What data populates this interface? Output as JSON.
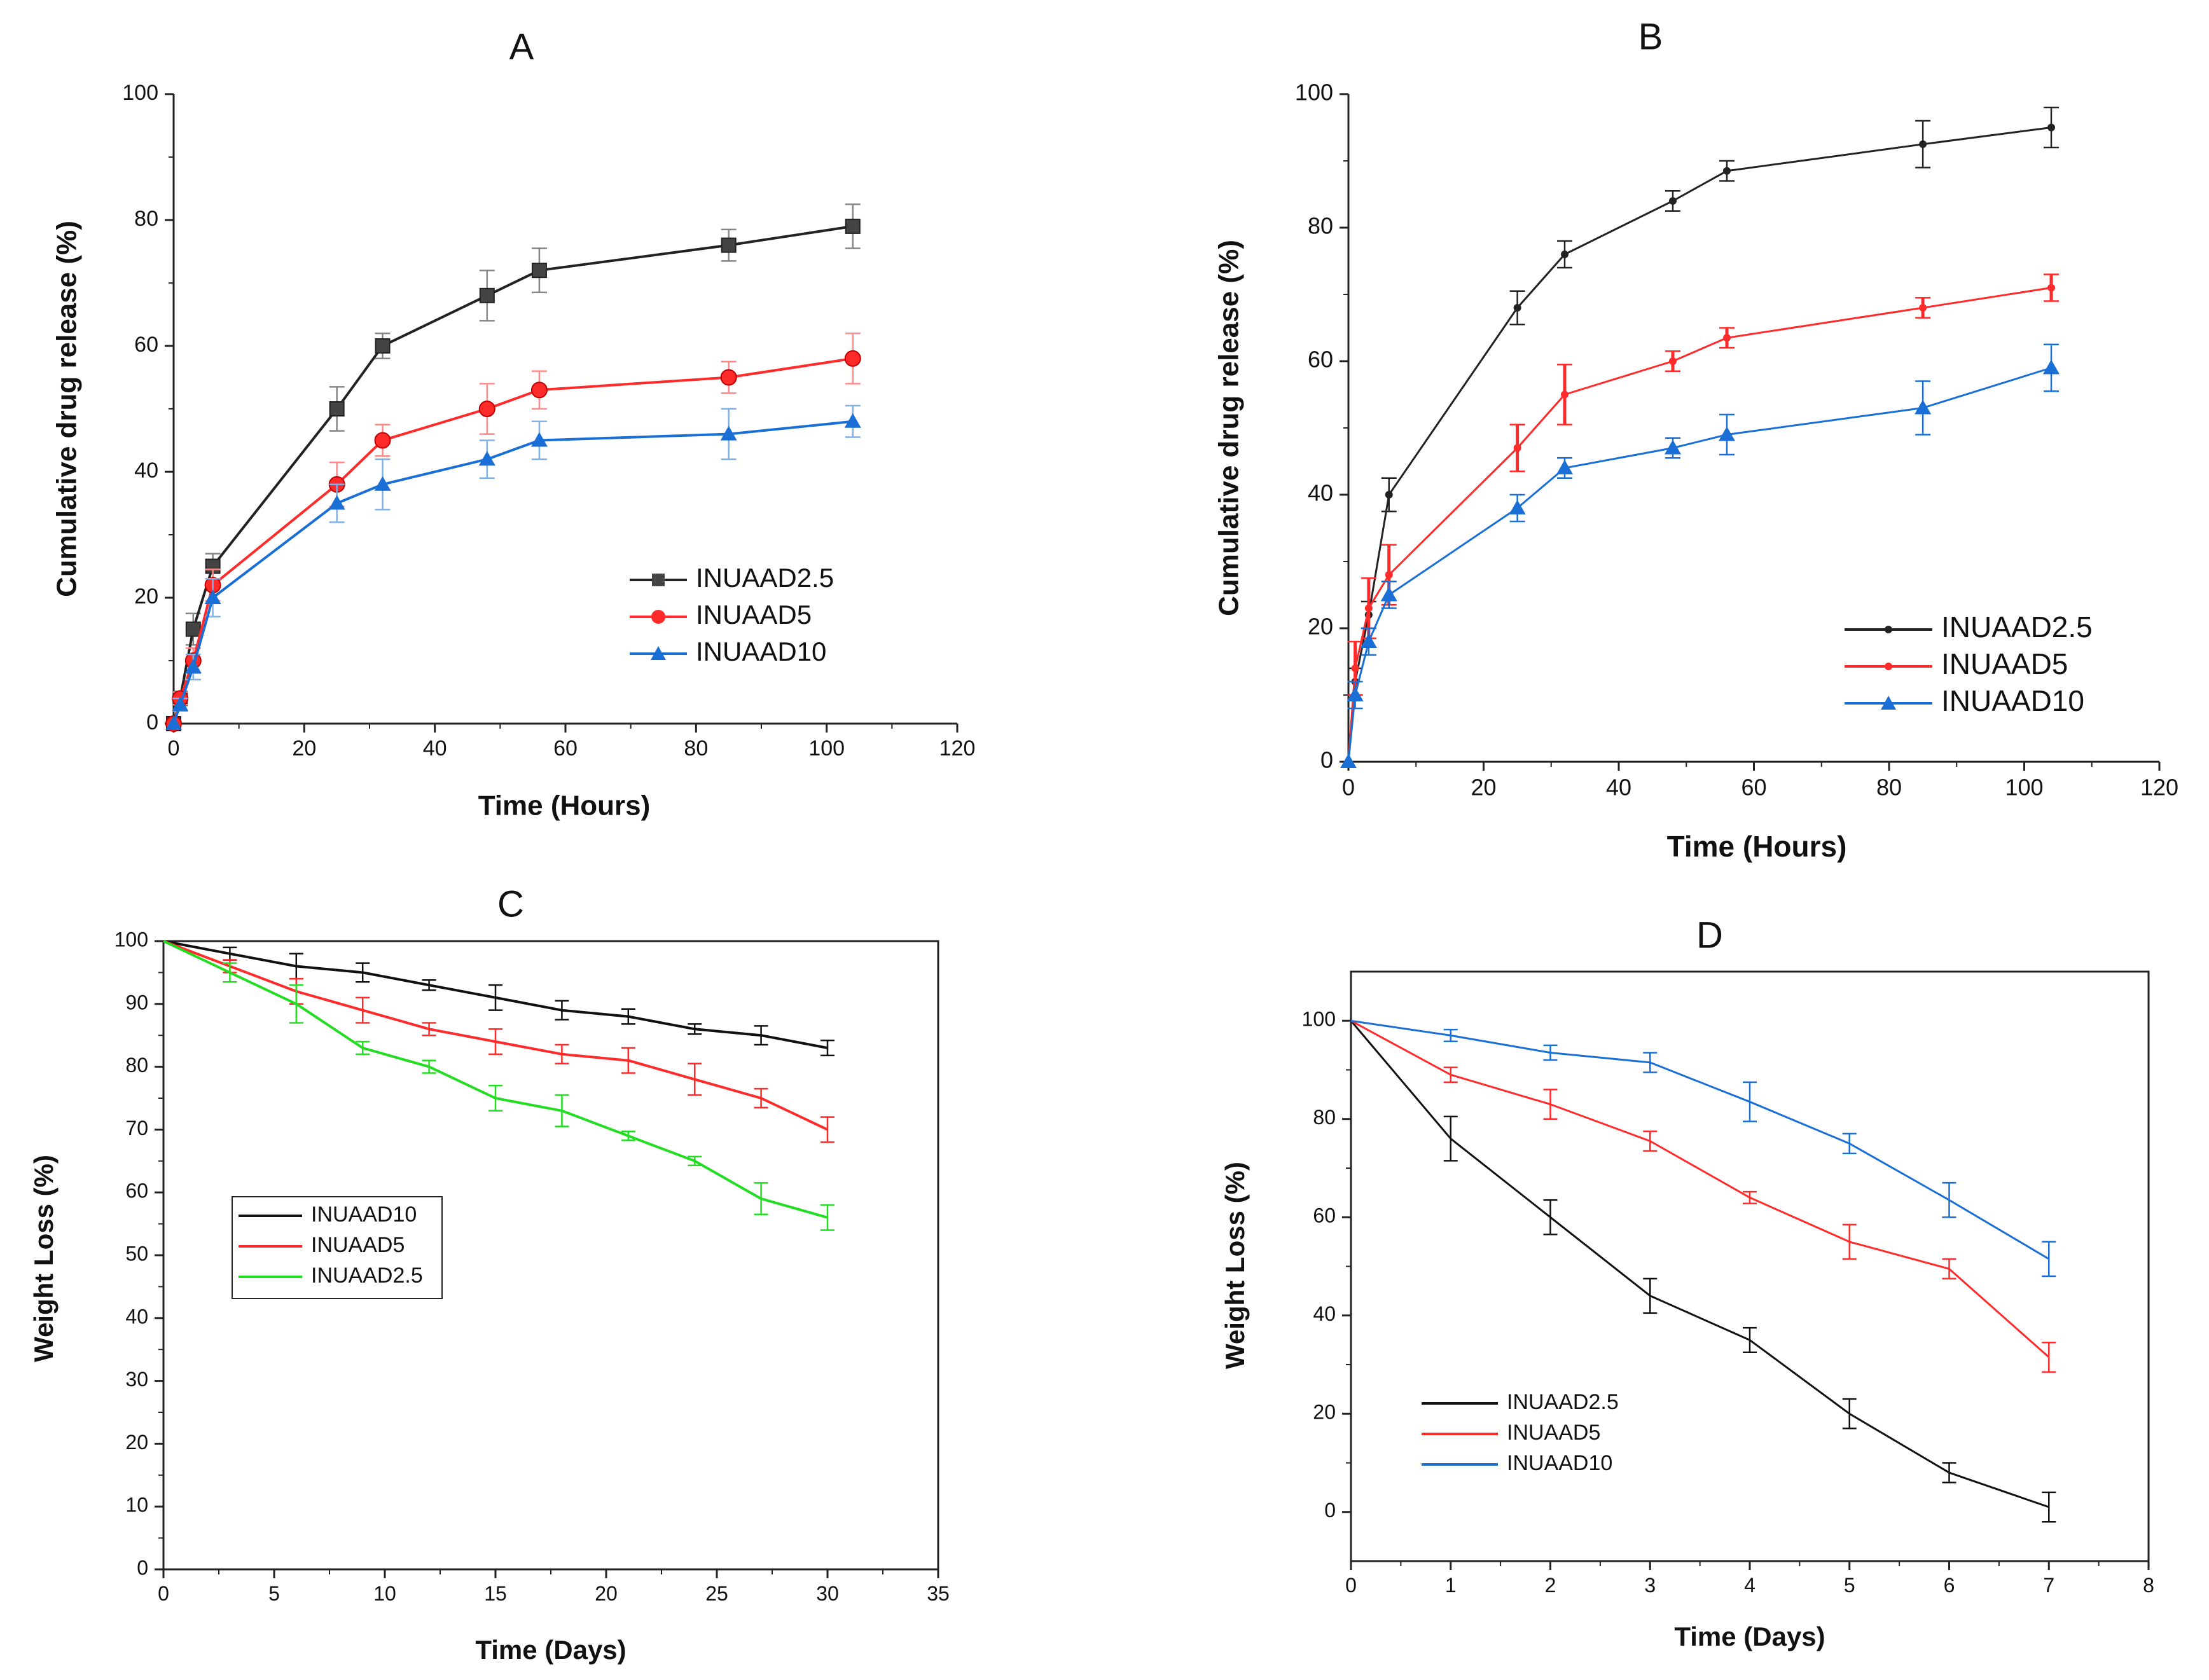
{
  "chart_data": [
    {
      "panel_label": "A",
      "type": "line",
      "xlabel": "Time (Hours)",
      "ylabel": "Cumulative drug release (%)",
      "xlim": [
        0,
        120
      ],
      "ylim": [
        0,
        100
      ],
      "xticks": [
        0,
        20,
        40,
        60,
        80,
        100,
        120
      ],
      "yticks": [
        0,
        20,
        40,
        60,
        80,
        100
      ],
      "legend_position": "right-middle",
      "series": [
        {
          "name": "INUAAD2.5",
          "color": "#222222",
          "marker": "square",
          "x": [
            0,
            1,
            3,
            6,
            25,
            32,
            48,
            56,
            85,
            104
          ],
          "y": [
            0,
            4,
            15,
            25,
            50,
            60,
            68,
            72,
            76,
            79
          ],
          "err": [
            0,
            1,
            2.5,
            2,
            3.5,
            2,
            4,
            3.5,
            2.5,
            3.5
          ]
        },
        {
          "name": "INUAAD5",
          "color": "#ff2a2a",
          "marker": "circle",
          "x": [
            0,
            1,
            3,
            6,
            25,
            32,
            48,
            56,
            85,
            104
          ],
          "y": [
            0,
            4,
            10,
            22,
            38,
            45,
            50,
            53,
            55,
            58
          ],
          "err": [
            0,
            1,
            2,
            2.5,
            3.5,
            2.5,
            4,
            3,
            2.5,
            4
          ]
        },
        {
          "name": "INUAAD10",
          "color": "#1a6fd6",
          "marker": "triangle",
          "x": [
            0,
            1,
            3,
            6,
            25,
            32,
            48,
            56,
            85,
            104
          ],
          "y": [
            0,
            3,
            9,
            20,
            35,
            38,
            42,
            45,
            46,
            48
          ],
          "err": [
            0,
            1,
            2,
            3,
            3,
            4,
            3,
            3,
            4,
            2.5
          ]
        }
      ]
    },
    {
      "panel_label": "B",
      "type": "line",
      "xlabel": "Time (Hours)",
      "ylabel": "Cumulative drug release (%)",
      "xlim": [
        0,
        120
      ],
      "ylim": [
        0,
        100
      ],
      "xticks": [
        0,
        20,
        40,
        60,
        80,
        100,
        120
      ],
      "yticks": [
        0,
        20,
        40,
        60,
        80,
        100
      ],
      "legend_position": "bottom-right",
      "series": [
        {
          "name": "INUAAD2.5",
          "color": "#222222",
          "marker": "dot",
          "x": [
            0,
            1,
            3,
            6,
            25,
            32,
            48,
            56,
            85,
            104
          ],
          "y": [
            0,
            12,
            22,
            40,
            68,
            76,
            84,
            88.5,
            92.5,
            95
          ],
          "err": [
            0,
            2,
            2,
            2.5,
            2.5,
            2,
            1.5,
            1.5,
            3.5,
            3
          ]
        },
        {
          "name": "INUAAD5",
          "color": "#ff2a2a",
          "marker": "dot",
          "x": [
            0,
            1,
            3,
            6,
            25,
            32,
            48,
            56,
            85,
            104
          ],
          "y": [
            0,
            14,
            23,
            28,
            47,
            55,
            60,
            63.5,
            68,
            71
          ],
          "err": [
            0,
            4,
            4.5,
            4.5,
            3.5,
            4.5,
            1.5,
            1.5,
            1.5,
            2
          ]
        },
        {
          "name": "INUAAD10",
          "color": "#1a6fd6",
          "marker": "triangle",
          "x": [
            0,
            1,
            3,
            6,
            25,
            32,
            48,
            56,
            85,
            104
          ],
          "y": [
            0,
            10,
            18,
            25,
            38,
            44,
            47,
            49,
            53,
            59
          ],
          "err": [
            0,
            2,
            2,
            2,
            2,
            1.5,
            1.5,
            3,
            4,
            3.5
          ]
        }
      ]
    },
    {
      "panel_label": "C",
      "type": "line",
      "xlabel": "Time (Days)",
      "ylabel": "Weight Loss (%)",
      "xlim": [
        0,
        35
      ],
      "ylim": [
        0,
        100
      ],
      "xticks": [
        0,
        5,
        10,
        15,
        20,
        25,
        30,
        35
      ],
      "yticks": [
        0,
        10,
        20,
        30,
        40,
        50,
        60,
        70,
        80,
        90,
        100
      ],
      "legend_position": "left-middle",
      "series": [
        {
          "name": "INUAAD10",
          "color": "#111111",
          "marker": "none",
          "x": [
            0,
            3,
            6,
            9,
            12,
            15,
            18,
            21,
            24,
            27,
            30
          ],
          "y": [
            100,
            98,
            96,
            95,
            93,
            91,
            89,
            88,
            86,
            85,
            83
          ],
          "err": [
            0,
            1,
            2,
            1.5,
            0.8,
            2,
            1.5,
            1.2,
            0.8,
            1.5,
            1.2
          ]
        },
        {
          "name": "INUAAD5",
          "color": "#ff2a2a",
          "marker": "none",
          "x": [
            0,
            3,
            6,
            9,
            12,
            15,
            18,
            21,
            24,
            27,
            30
          ],
          "y": [
            100,
            96,
            92,
            89,
            86,
            84,
            82,
            81,
            78,
            75,
            70
          ],
          "err": [
            0,
            1,
            2,
            2,
            1,
            2,
            1.5,
            2,
            2.5,
            1.5,
            2
          ]
        },
        {
          "name": "INUAAD2.5",
          "color": "#22dd22",
          "marker": "none",
          "x": [
            0,
            3,
            6,
            9,
            12,
            15,
            18,
            21,
            24,
            27,
            30
          ],
          "y": [
            100,
            95,
            90,
            83,
            80,
            75,
            73,
            69,
            65,
            59,
            56
          ],
          "err": [
            0,
            1.5,
            3,
            1,
            1,
            2,
            2.5,
            0.7,
            0.7,
            2.5,
            2
          ]
        }
      ]
    },
    {
      "panel_label": "D",
      "type": "line",
      "xlabel": "Time (Days)",
      "ylabel": "Weight Loss (%)",
      "xlim": [
        0,
        8
      ],
      "ylim": [
        -10,
        110
      ],
      "xticks": [
        0,
        1,
        2,
        3,
        4,
        5,
        6,
        7,
        8
      ],
      "yticks": [
        0,
        20,
        40,
        60,
        80,
        100
      ],
      "legend_position": "bottom-left",
      "series": [
        {
          "name": "INUAAD2.5",
          "color": "#111111",
          "marker": "none",
          "x": [
            0,
            1,
            2,
            3,
            4,
            5,
            6,
            7
          ],
          "y": [
            100,
            76,
            60,
            44,
            35,
            20,
            8,
            1
          ],
          "err": [
            0,
            4.5,
            3.5,
            3.5,
            2.5,
            3,
            2,
            3
          ]
        },
        {
          "name": "INUAAD5",
          "color": "#ff2a2a",
          "marker": "none",
          "x": [
            0,
            1,
            2,
            3,
            4,
            5,
            6,
            7
          ],
          "y": [
            100,
            89,
            83,
            75.5,
            64,
            55,
            49.5,
            31.5
          ],
          "err": [
            0,
            1.5,
            3,
            2,
            1.2,
            3.5,
            2,
            3
          ]
        },
        {
          "name": "INUAAD10",
          "color": "#1a6fd6",
          "marker": "none",
          "x": [
            0,
            1,
            2,
            3,
            4,
            5,
            6,
            7
          ],
          "y": [
            100,
            97,
            93.5,
            91.5,
            83.5,
            75,
            63.5,
            51.5
          ],
          "err": [
            0,
            1.2,
            1.5,
            2,
            4,
            2,
            3.5,
            3.5
          ]
        }
      ]
    }
  ]
}
